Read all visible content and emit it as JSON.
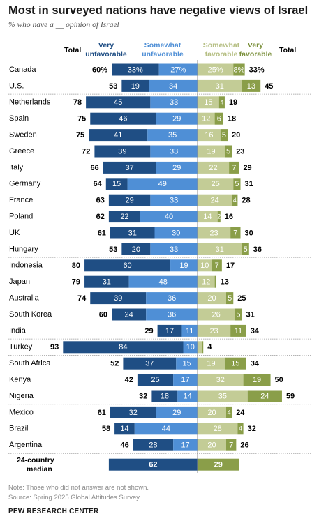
{
  "title": "Most in surveyed nations have negative views of Israel",
  "subtitle": "% who have a __ opinion of Israel",
  "note": "Note: Those who did not answer are not shown.",
  "source": "Source: Spring 2025 Global Attitudes Survey.",
  "brand": "PEW RESEARCH CENTER",
  "colors": {
    "very_unfavorable": "#1f4e84",
    "somewhat_unfavorable": "#4f8fd6",
    "somewhat_favorable": "#c3cc96",
    "very_favorable": "#8a9e49",
    "header_unfav": "#1f4e84",
    "header_somewhat_unfav": "#4f8fd6",
    "header_somewhat_fav": "#b6bf84",
    "header_very_fav": "#7a8f3a"
  },
  "chart_data": {
    "type": "bar",
    "stacked": "diverging",
    "headers": {
      "total_left": "Total",
      "very_unfavorable": [
        "Very",
        "unfavorable"
      ],
      "somewhat_unfavorable": [
        "Somewhat",
        "unfavorable"
      ],
      "somewhat_favorable": [
        "Somewhat",
        "favorable"
      ],
      "very_favorable": [
        "Very",
        "favorable"
      ],
      "total_right": "Total"
    },
    "series": [
      {
        "name": "Very unfavorable"
      },
      {
        "name": "Somewhat unfavorable"
      },
      {
        "name": "Somewhat favorable"
      },
      {
        "name": "Very favorable"
      }
    ],
    "rows": [
      {
        "country": "Canada",
        "total_unfav": "60%",
        "very_unfav": 33,
        "somewhat_unfav": 27,
        "somewhat_fav": 25,
        "very_fav": 8,
        "total_fav": "33%",
        "pct": true
      },
      {
        "country": "U.S.",
        "total_unfav": "53",
        "very_unfav": 19,
        "somewhat_unfav": 34,
        "somewhat_fav": 31,
        "very_fav": 13,
        "total_fav": "45"
      },
      {
        "country": "Netherlands",
        "total_unfav": "78",
        "very_unfav": 45,
        "somewhat_unfav": 33,
        "somewhat_fav": 15,
        "very_fav": 4,
        "total_fav": "19"
      },
      {
        "country": "Spain",
        "total_unfav": "75",
        "very_unfav": 46,
        "somewhat_unfav": 29,
        "somewhat_fav": 12,
        "very_fav": 6,
        "total_fav": "18"
      },
      {
        "country": "Sweden",
        "total_unfav": "75",
        "very_unfav": 41,
        "somewhat_unfav": 35,
        "somewhat_fav": 16,
        "very_fav": 5,
        "total_fav": "20"
      },
      {
        "country": "Greece",
        "total_unfav": "72",
        "very_unfav": 39,
        "somewhat_unfav": 33,
        "somewhat_fav": 19,
        "very_fav": 5,
        "total_fav": "23"
      },
      {
        "country": "Italy",
        "total_unfav": "66",
        "very_unfav": 37,
        "somewhat_unfav": 29,
        "somewhat_fav": 22,
        "very_fav": 7,
        "total_fav": "29"
      },
      {
        "country": "Germany",
        "total_unfav": "64",
        "very_unfav": 15,
        "somewhat_unfav": 49,
        "somewhat_fav": 25,
        "very_fav": 5,
        "total_fav": "31"
      },
      {
        "country": "France",
        "total_unfav": "63",
        "very_unfav": 29,
        "somewhat_unfav": 33,
        "somewhat_fav": 24,
        "very_fav": 4,
        "total_fav": "28"
      },
      {
        "country": "Poland",
        "total_unfav": "62",
        "very_unfav": 22,
        "somewhat_unfav": 40,
        "somewhat_fav": 14,
        "very_fav": 2,
        "total_fav": "16"
      },
      {
        "country": "UK",
        "total_unfav": "61",
        "very_unfav": 31,
        "somewhat_unfav": 30,
        "somewhat_fav": 23,
        "very_fav": 7,
        "total_fav": "30"
      },
      {
        "country": "Hungary",
        "total_unfav": "53",
        "very_unfav": 20,
        "somewhat_unfav": 33,
        "somewhat_fav": 31,
        "very_fav": 5,
        "total_fav": "36"
      },
      {
        "country": "Indonesia",
        "total_unfav": "80",
        "very_unfav": 60,
        "somewhat_unfav": 19,
        "somewhat_fav": 10,
        "very_fav": 7,
        "total_fav": "17"
      },
      {
        "country": "Japan",
        "total_unfav": "79",
        "very_unfav": 31,
        "somewhat_unfav": 48,
        "somewhat_fav": 12,
        "very_fav": 1,
        "total_fav": "13"
      },
      {
        "country": "Australia",
        "total_unfav": "74",
        "very_unfav": 39,
        "somewhat_unfav": 36,
        "somewhat_fav": 20,
        "very_fav": 5,
        "total_fav": "25"
      },
      {
        "country": "South Korea",
        "total_unfav": "60",
        "very_unfav": 24,
        "somewhat_unfav": 36,
        "somewhat_fav": 26,
        "very_fav": 5,
        "total_fav": "31"
      },
      {
        "country": "India",
        "total_unfav": "29",
        "very_unfav": 17,
        "somewhat_unfav": 11,
        "somewhat_fav": 23,
        "very_fav": 11,
        "total_fav": "34"
      },
      {
        "country": "Turkey",
        "total_unfav": "93",
        "very_unfav": 84,
        "somewhat_unfav": 10,
        "somewhat_fav": 3,
        "very_fav": 1,
        "total_fav": "4"
      },
      {
        "country": "South Africa",
        "total_unfav": "52",
        "very_unfav": 37,
        "somewhat_unfav": 15,
        "somewhat_fav": 19,
        "very_fav": 15,
        "total_fav": "34"
      },
      {
        "country": "Kenya",
        "total_unfav": "42",
        "very_unfav": 25,
        "somewhat_unfav": 17,
        "somewhat_fav": 32,
        "very_fav": 19,
        "total_fav": "50"
      },
      {
        "country": "Nigeria",
        "total_unfav": "32",
        "very_unfav": 18,
        "somewhat_unfav": 14,
        "somewhat_fav": 35,
        "very_fav": 24,
        "total_fav": "59"
      },
      {
        "country": "Mexico",
        "total_unfav": "61",
        "very_unfav": 32,
        "somewhat_unfav": 29,
        "somewhat_fav": 20,
        "very_fav": 4,
        "total_fav": "24"
      },
      {
        "country": "Brazil",
        "total_unfav": "58",
        "very_unfav": 14,
        "somewhat_unfav": 44,
        "somewhat_fav": 28,
        "very_fav": 4,
        "total_fav": "32"
      },
      {
        "country": "Argentina",
        "total_unfav": "46",
        "very_unfav": 28,
        "somewhat_unfav": 17,
        "somewhat_fav": 20,
        "very_fav": 7,
        "total_fav": "26"
      }
    ],
    "median": {
      "label": [
        "24-country",
        "median"
      ],
      "unfav": 62,
      "fav": 29
    }
  }
}
